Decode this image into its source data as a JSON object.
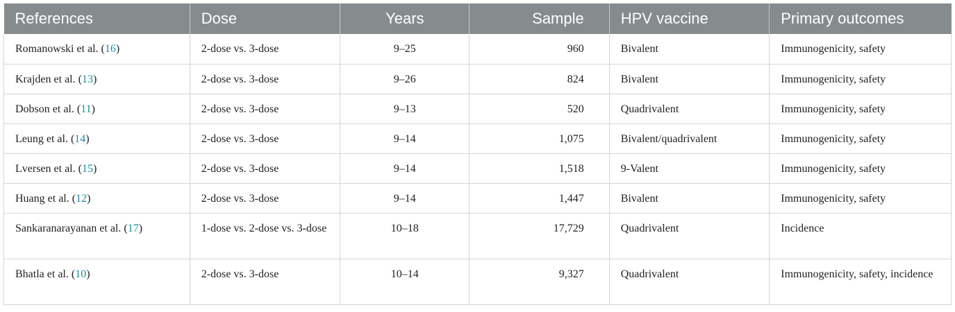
{
  "table": {
    "headers": [
      "References",
      "Dose",
      "Years",
      "Sample",
      "HPV vaccine",
      "Primary outcomes"
    ],
    "rows": [
      {
        "author": "Romanowski et al.",
        "ref": "16",
        "dose": "2-dose vs. 3-dose",
        "years": "9–25",
        "sample": "960",
        "vaccine": "Bivalent",
        "outcomes": "Immunogenicity, safety"
      },
      {
        "author": "Krajden et al.",
        "ref": "13",
        "dose": "2-dose vs. 3-dose",
        "years": "9–26",
        "sample": "824",
        "vaccine": "Bivalent",
        "outcomes": "Immunogenicity, safety"
      },
      {
        "author": "Dobson et al.",
        "ref": "11",
        "dose": "2-dose vs. 3-dose",
        "years": "9–13",
        "sample": "520",
        "vaccine": "Quadrivalent",
        "outcomes": "Immunogenicity, safety"
      },
      {
        "author": "Leung et al.",
        "ref": "14",
        "dose": "2-dose vs. 3-dose",
        "years": "9–14",
        "sample": "1,075",
        "vaccine": "Bivalent/quadrivalent",
        "outcomes": "Immunogenicity, safety"
      },
      {
        "author": "Lversen et al.",
        "ref": "15",
        "dose": "2-dose vs. 3-dose",
        "years": "9–14",
        "sample": "1,518",
        "vaccine": "9-Valent",
        "outcomes": "Immunogenicity, safety"
      },
      {
        "author": "Huang et al.",
        "ref": "12",
        "dose": "2-dose vs. 3-dose",
        "years": "9–14",
        "sample": "1,447",
        "vaccine": "Bivalent",
        "outcomes": "Immunogenicity, safety"
      },
      {
        "author": "Sankaranarayanan et al.",
        "ref": "17",
        "dose": "1-dose vs. 2-dose vs. 3-dose",
        "years": "10–18",
        "sample": "17,729",
        "vaccine": "Quadrivalent",
        "outcomes": "Incidence"
      },
      {
        "author": "Bhatla et al.",
        "ref": "10",
        "dose": "2-dose vs. 3-dose",
        "years": "10–14",
        "sample": "9,327",
        "vaccine": "Quadrivalent",
        "outcomes": "Immunogenicity, safety, incidence"
      }
    ]
  },
  "colors": {
    "header_bg": "#868b8d",
    "header_text": "#ffffff",
    "link": "#1a8fa3",
    "border": "#d4d4d4"
  }
}
